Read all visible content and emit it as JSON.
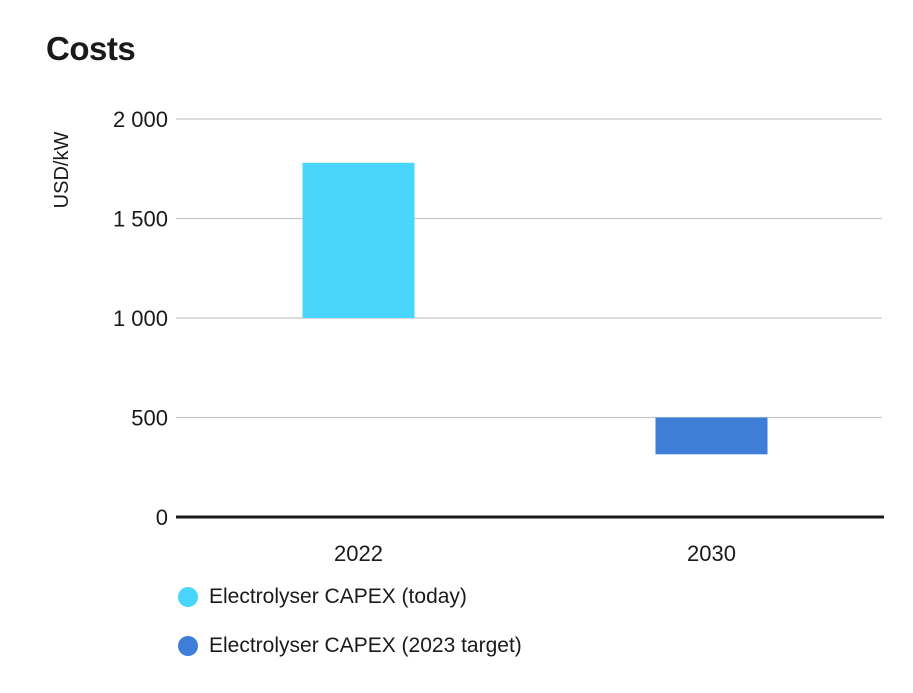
{
  "chart_data": {
    "type": "bar",
    "title": "Costs",
    "ylabel": "USD/kW",
    "xlabel": "",
    "categories": [
      "2022",
      "2030"
    ],
    "y_tick_labels": [
      "0",
      "500",
      "1 000",
      "1 500",
      "2 000"
    ],
    "y_ticks": [
      0,
      500,
      1000,
      1500,
      2000
    ],
    "ylim": [
      0,
      2000
    ],
    "grid": true,
    "legend_placement": "bottom-left",
    "series": [
      {
        "name": "Electrolyser CAPEX (today)",
        "color": "#4ad5fc",
        "ranges": [
          [
            1000,
            1780
          ],
          null
        ]
      },
      {
        "name": "Electrolyser CAPEX (2023 target)",
        "color": "#3e7ed6",
        "ranges": [
          null,
          [
            315,
            500
          ]
        ]
      }
    ]
  }
}
